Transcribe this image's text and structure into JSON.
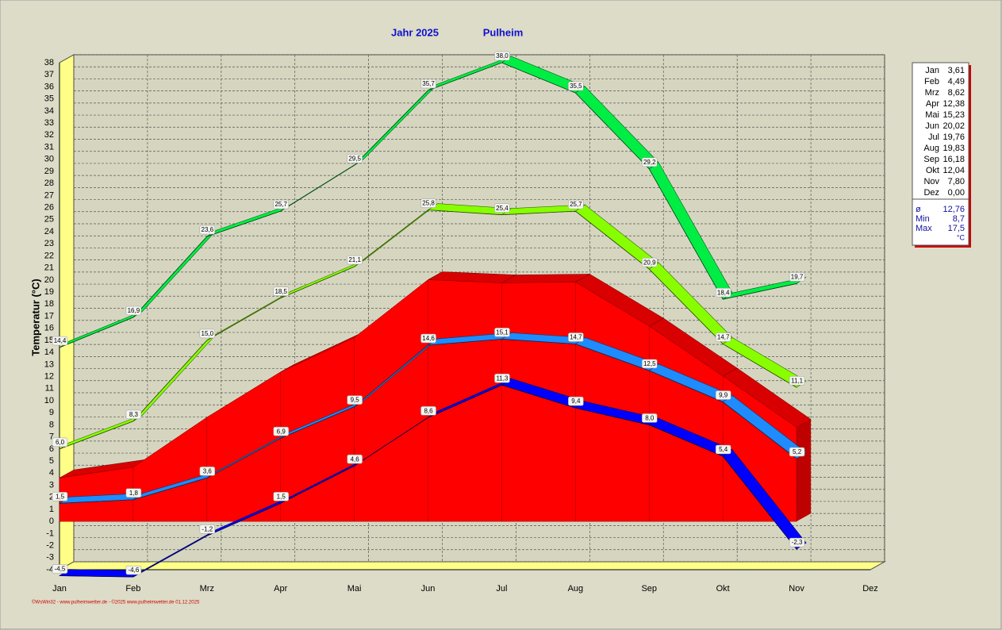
{
  "chart_data": {
    "type": "line3d",
    "title": "Jahr  2025",
    "subtitle": "Pulheim",
    "ylabel": "Temperatur  (°C)",
    "footer": "©WsWin32 - www.pulheimwetter.de - ©2025 www.pulheimwetter.de  01.12.2025",
    "categories": [
      "Jan",
      "Feb",
      "Mrz",
      "Apr",
      "Mai",
      "Jun",
      "Jul",
      "Aug",
      "Sep",
      "Okt",
      "Nov",
      "Dez"
    ],
    "ylim": [
      -4,
      38
    ],
    "yticks": [
      -4,
      -3,
      -2,
      -1,
      0,
      1,
      2,
      3,
      4,
      5,
      6,
      7,
      8,
      9,
      10,
      11,
      12,
      13,
      14,
      15,
      16,
      17,
      18,
      19,
      20,
      21,
      22,
      23,
      24,
      25,
      26,
      27,
      28,
      29,
      30,
      31,
      32,
      33,
      34,
      35,
      36,
      37,
      38
    ],
    "grid": true,
    "series": [
      {
        "style": "area",
        "color": "#ff0000",
        "values": [
          3.61,
          4.49,
          8.62,
          12.38,
          15.23,
          20.02,
          19.76,
          19.83,
          16.18,
          12.04,
          7.8,
          null
        ]
      },
      {
        "style": "ribbon",
        "color": "#00ee44",
        "values": [
          14.4,
          16.9,
          23.6,
          25.7,
          29.5,
          35.7,
          38.0,
          35.5,
          29.2,
          18.4,
          19.7,
          null
        ],
        "value_labels": [
          "14,4",
          "16,9",
          "23,6",
          "25,7",
          "29,5",
          "35,7",
          "38,0",
          "35,5",
          "29,2",
          "18,4",
          "19,7",
          null
        ]
      },
      {
        "style": "ribbon",
        "color": "#88ff00",
        "values": [
          6.0,
          8.3,
          15.0,
          18.5,
          21.1,
          25.8,
          25.4,
          25.7,
          20.9,
          14.7,
          11.1,
          null
        ],
        "value_labels": [
          "6,0",
          "8,3",
          "15,0",
          "18,5",
          "21,1",
          "25,8",
          "25,4",
          "25,7",
          "20,9",
          "14,7",
          "11,1",
          null
        ]
      },
      {
        "style": "ribbon",
        "color": "#1e8cff",
        "values": [
          1.5,
          1.8,
          3.6,
          6.9,
          9.5,
          14.6,
          15.1,
          14.7,
          12.5,
          9.9,
          5.2,
          null
        ],
        "value_labels": [
          "1,5",
          "1,8",
          "3,6",
          "6,9",
          "9,5",
          "14,6",
          "15,1",
          "14,7",
          "12,5",
          "9,9",
          "5,2",
          null
        ]
      },
      {
        "style": "ribbon",
        "color": "#0000ff",
        "values": [
          -4.5,
          -4.6,
          -1.2,
          1.5,
          4.6,
          8.6,
          11.3,
          9.4,
          8.0,
          5.4,
          -2.3,
          null
        ],
        "value_labels": [
          "-4,5",
          "-4,6",
          "-1,2",
          "1,5",
          "4,6",
          "8,6",
          "11,3",
          "9,4",
          "8,0",
          "5,4",
          "-2,3",
          null
        ]
      }
    ]
  },
  "table": {
    "rows": [
      [
        "Jan",
        "3,61"
      ],
      [
        "Feb",
        "4,49"
      ],
      [
        "Mrz",
        "8,62"
      ],
      [
        "Apr",
        "12,38"
      ],
      [
        "Mai",
        "15,23"
      ],
      [
        "Jun",
        "20,02"
      ],
      [
        "Jul",
        "19,76"
      ],
      [
        "Aug",
        "19,83"
      ],
      [
        "Sep",
        "16,18"
      ],
      [
        "Okt",
        "12,04"
      ],
      [
        "Nov",
        "7,80"
      ],
      [
        "Dez",
        "0,00"
      ]
    ],
    "stats": [
      [
        "ø",
        "12,76"
      ],
      [
        "Min",
        "8,7"
      ],
      [
        "Max",
        "17,5"
      ]
    ],
    "unit": "°C"
  }
}
